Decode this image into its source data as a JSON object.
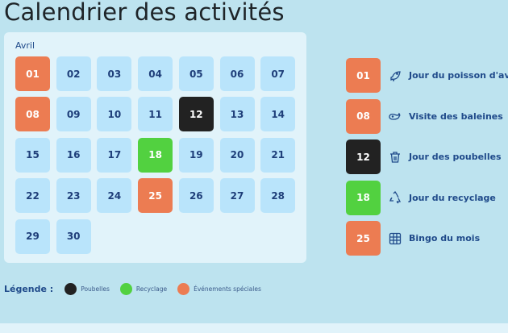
{
  "title": "Calendrier des activités",
  "calendar": {
    "month": "Avril",
    "days": [
      {
        "d": "01",
        "t": "orange"
      },
      {
        "d": "02"
      },
      {
        "d": "03"
      },
      {
        "d": "04"
      },
      {
        "d": "05"
      },
      {
        "d": "06"
      },
      {
        "d": "07"
      },
      {
        "d": "08",
        "t": "orange"
      },
      {
        "d": "09"
      },
      {
        "d": "10"
      },
      {
        "d": "11"
      },
      {
        "d": "12",
        "t": "black"
      },
      {
        "d": "13"
      },
      {
        "d": "14"
      },
      {
        "d": "15"
      },
      {
        "d": "16"
      },
      {
        "d": "17"
      },
      {
        "d": "18",
        "t": "green"
      },
      {
        "d": "19"
      },
      {
        "d": "20"
      },
      {
        "d": "21"
      },
      {
        "d": "22"
      },
      {
        "d": "23"
      },
      {
        "d": "24"
      },
      {
        "d": "25",
        "t": "orange"
      },
      {
        "d": "26"
      },
      {
        "d": "27"
      },
      {
        "d": "28"
      },
      {
        "d": "29"
      },
      {
        "d": "30"
      }
    ]
  },
  "events": [
    {
      "day": "01",
      "label": "Jour du poisson d'avril",
      "icon": "fish-icon",
      "t": "orange"
    },
    {
      "day": "08",
      "label": "Visite des baleines",
      "icon": "whale-icon",
      "t": "orange"
    },
    {
      "day": "12",
      "label": "Jour des poubelles",
      "icon": "trash-icon",
      "t": "black"
    },
    {
      "day": "18",
      "label": "Jour du recyclage",
      "icon": "recycle-icon",
      "t": "green"
    },
    {
      "day": "25",
      "label": "Bingo du mois",
      "icon": "grid-icon",
      "t": "orange"
    }
  ],
  "legend": {
    "title": "Légende :",
    "items": [
      {
        "label": "Poubelles",
        "color": "#222222"
      },
      {
        "label": "Recyclage",
        "color": "#52d140"
      },
      {
        "label": "Événements spéciales",
        "color": "#ec7c52"
      }
    ]
  }
}
